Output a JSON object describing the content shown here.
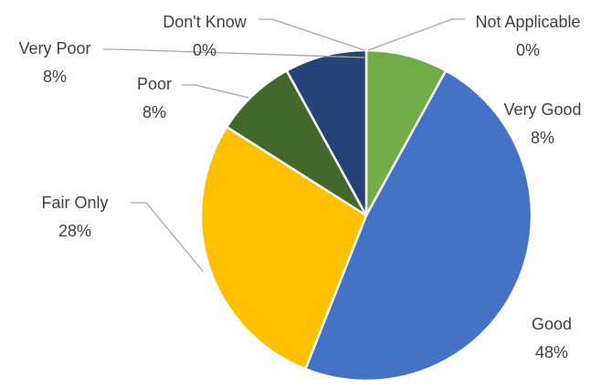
{
  "chart_data": {
    "type": "pie",
    "title": "",
    "slices": [
      {
        "label": "Very Good",
        "value": 8,
        "value_label": "8%",
        "color": "#70ad47"
      },
      {
        "label": "Good",
        "value": 48,
        "value_label": "48%",
        "color": "#4472c4"
      },
      {
        "label": "Fair Only",
        "value": 28,
        "value_label": "28%",
        "color": "#ffc000"
      },
      {
        "label": "Poor",
        "value": 8,
        "value_label": "8%",
        "color": "#43682b"
      },
      {
        "label": "Very Poor",
        "value": 8,
        "value_label": "8%",
        "color": "#264478"
      },
      {
        "label": "Don't Know",
        "value": 0,
        "value_label": "0%",
        "color": "#9e480e"
      },
      {
        "label": "Not Applicable",
        "value": 0,
        "value_label": "0%",
        "color": "#636363"
      }
    ],
    "start_angle": "12 o'clock",
    "direction": "clockwise",
    "legend": "none",
    "data_labels": "category name and percentage, outside end with leader lines"
  }
}
